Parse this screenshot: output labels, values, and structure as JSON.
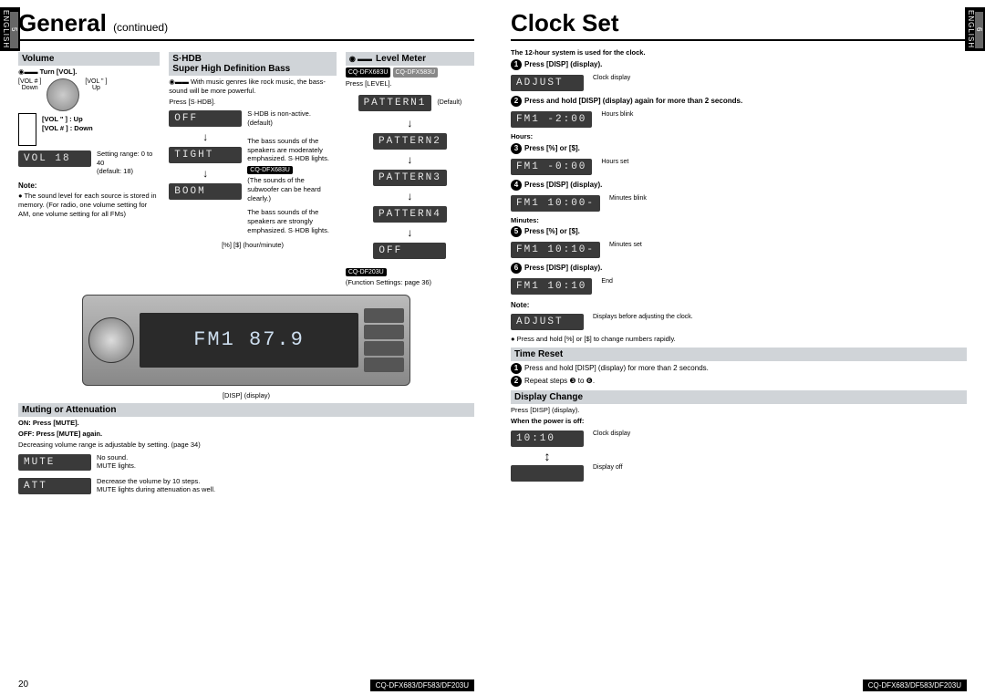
{
  "side_label": "ENGLISH",
  "side_num_left": "5",
  "side_num_right": "6",
  "left": {
    "title": "General",
    "title_suffix": "(continued)",
    "page_num": "20",
    "footer_models": "CQ-DFX683/DF583/DF203U",
    "volume": {
      "header": "Volume",
      "turn": "Turn [VOL].",
      "vol_down": "[VOL # ]",
      "vol_up": "[VOL \" ]",
      "down": "Down",
      "up": "Up",
      "remote_up": "[VOL \" ] : Up",
      "remote_down": "[VOL # ] : Down",
      "lcd": "VOL  18",
      "range": "Setting range: 0 to 40\n(default: 18)",
      "note_label": "Note:",
      "note": "● The sound level for each source is stored in memory. (For radio, one volume setting for AM, one volume setting for all FMs)"
    },
    "shdb": {
      "header1": "S·HDB",
      "header2": "Super High Definition Bass",
      "intro": "With music genres like rock music, the bass-sound will be more powerful.",
      "press": "Press [S·HDB].",
      "states": [
        {
          "lcd": "OFF",
          "desc": "S·HDB is non-active. (default)"
        },
        {
          "lcd": "TIGHT",
          "desc": "The bass sounds of the speakers are moderately emphasized.  S·HDB  lights."
        },
        {
          "lcd": "BOOM",
          "desc": "The bass sounds of the speakers are strongly emphasized.  S·HDB  lights."
        }
      ],
      "sub_badge": "CQ-DFX683U",
      "sub_desc": "(The sounds of the subwoofer can be heard clearly.)",
      "hint": "[%] [$] (hour/minute)"
    },
    "radio_display": "FM1 87.9",
    "disp_label": "[DISP] (display)",
    "muting": {
      "header": "Muting or Attenuation",
      "on": "ON:  Press [MUTE].",
      "off": "OFF: Press [MUTE] again.",
      "range": "Decreasing volume range is adjustable by setting. (page 34)",
      "mute_lcd": "MUTE",
      "mute_desc": "No sound.\n MUTE  lights.",
      "att_lcd": "ATT",
      "att_desc": "Decrease the volume by 10 steps.\n MUTE  lights during attenuation as well."
    },
    "level": {
      "header": "Level Meter",
      "badge1": "CQ-DFX683U",
      "badge2": "CQ-DFX583U",
      "press": "Press [LEVEL].",
      "patterns": [
        "PATTERN1",
        "PATTERN2",
        "PATTERN3",
        "PATTERN4",
        "OFF"
      ],
      "default": "(Default)",
      "badge3": "CQ-DF203U",
      "fs": "(Function Settings: page 36)"
    }
  },
  "right": {
    "title": "Clock Set",
    "page_num": "21",
    "footer_models": "CQ-DFX683/DF583/DF203U",
    "intro": "The 12-hour system is used for the clock.",
    "steps": [
      {
        "n": "1",
        "text": "Press [DISP] (display).",
        "lcd": "ADJUST",
        "side": "Clock display"
      },
      {
        "n": "2",
        "text": "Press and hold [DISP] (display) again for more than 2 seconds.",
        "lcd": "FM1 -2:00",
        "side": "Hours blink"
      },
      {
        "n": "",
        "text": "Hours:",
        "lcd": "",
        "side": ""
      },
      {
        "n": "3",
        "text": "Press [%] or [$].",
        "lcd": "FM1 -0:00",
        "side": "Hours set"
      },
      {
        "n": "4",
        "text": "Press [DISP] (display).",
        "lcd": "FM1 10:00-",
        "side": "Minutes blink"
      },
      {
        "n": "",
        "text": "Minutes:",
        "lcd": "",
        "side": ""
      },
      {
        "n": "5",
        "text": "Press [%] or [$].",
        "lcd": "FM1 10:10-",
        "side": "Minutes set"
      },
      {
        "n": "6",
        "text": "Press [DISP] (display).",
        "lcd": "FM1 10:10",
        "side": "End"
      }
    ],
    "note_label": "Note:",
    "note_lcd": "ADJUST",
    "note_side": "Displays before adjusting the clock.",
    "note_text": "● Press and hold [%] or [$] to change numbers rapidly.",
    "time_reset": {
      "header": "Time Reset",
      "s1": "Press and hold [DISP] (display) for more than 2 seconds.",
      "s2": "Repeat steps ❸ to ❻."
    },
    "display_change": {
      "header": "Display Change",
      "press": "Press [DISP] (display).",
      "when_off": "When the power is off:",
      "lcd1": "10:10",
      "side1": "Clock display",
      "side2": "Display off"
    }
  }
}
